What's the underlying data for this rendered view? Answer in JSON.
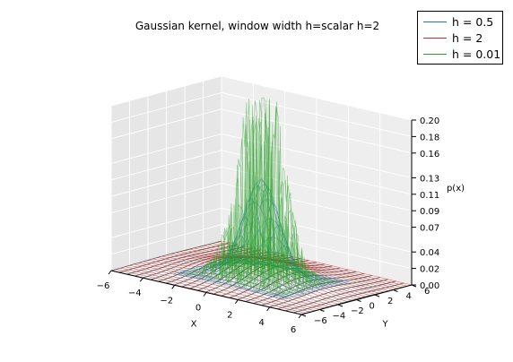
{
  "chart_data": {
    "type": "surface3d",
    "title": "Gaussian kernel, window width h=scalar h=2",
    "xlabel": "X",
    "ylabel": "Y",
    "zlabel": "p(x)",
    "xlim": [
      -6,
      6
    ],
    "ylim": [
      -6,
      6
    ],
    "zlim": [
      0.0,
      0.2
    ],
    "x_ticks": [
      "−6",
      "−4",
      "−2",
      "0",
      "2",
      "4",
      "6"
    ],
    "y_ticks": [
      "−6",
      "−4",
      "−2",
      "0",
      "2",
      "4",
      "6"
    ],
    "z_ticks": [
      "0.00",
      "0.02",
      "0.04",
      "0.07",
      "0.09",
      "0.11",
      "0.13",
      "0.16",
      "0.18",
      "0.20"
    ],
    "grid": true,
    "legend_position": "top-right",
    "series": [
      {
        "name": "h = 0.5",
        "color": "#1f77b4",
        "peak": 0.12,
        "spread": 1.0
      },
      {
        "name": "h = 2",
        "color": "#d62728",
        "peak": 0.02,
        "spread": 2.4
      },
      {
        "name": "h = 0.01",
        "color": "#2ca02c",
        "peak": 0.2,
        "spread": 1.0
      }
    ],
    "wireframe_color": "#555555"
  }
}
